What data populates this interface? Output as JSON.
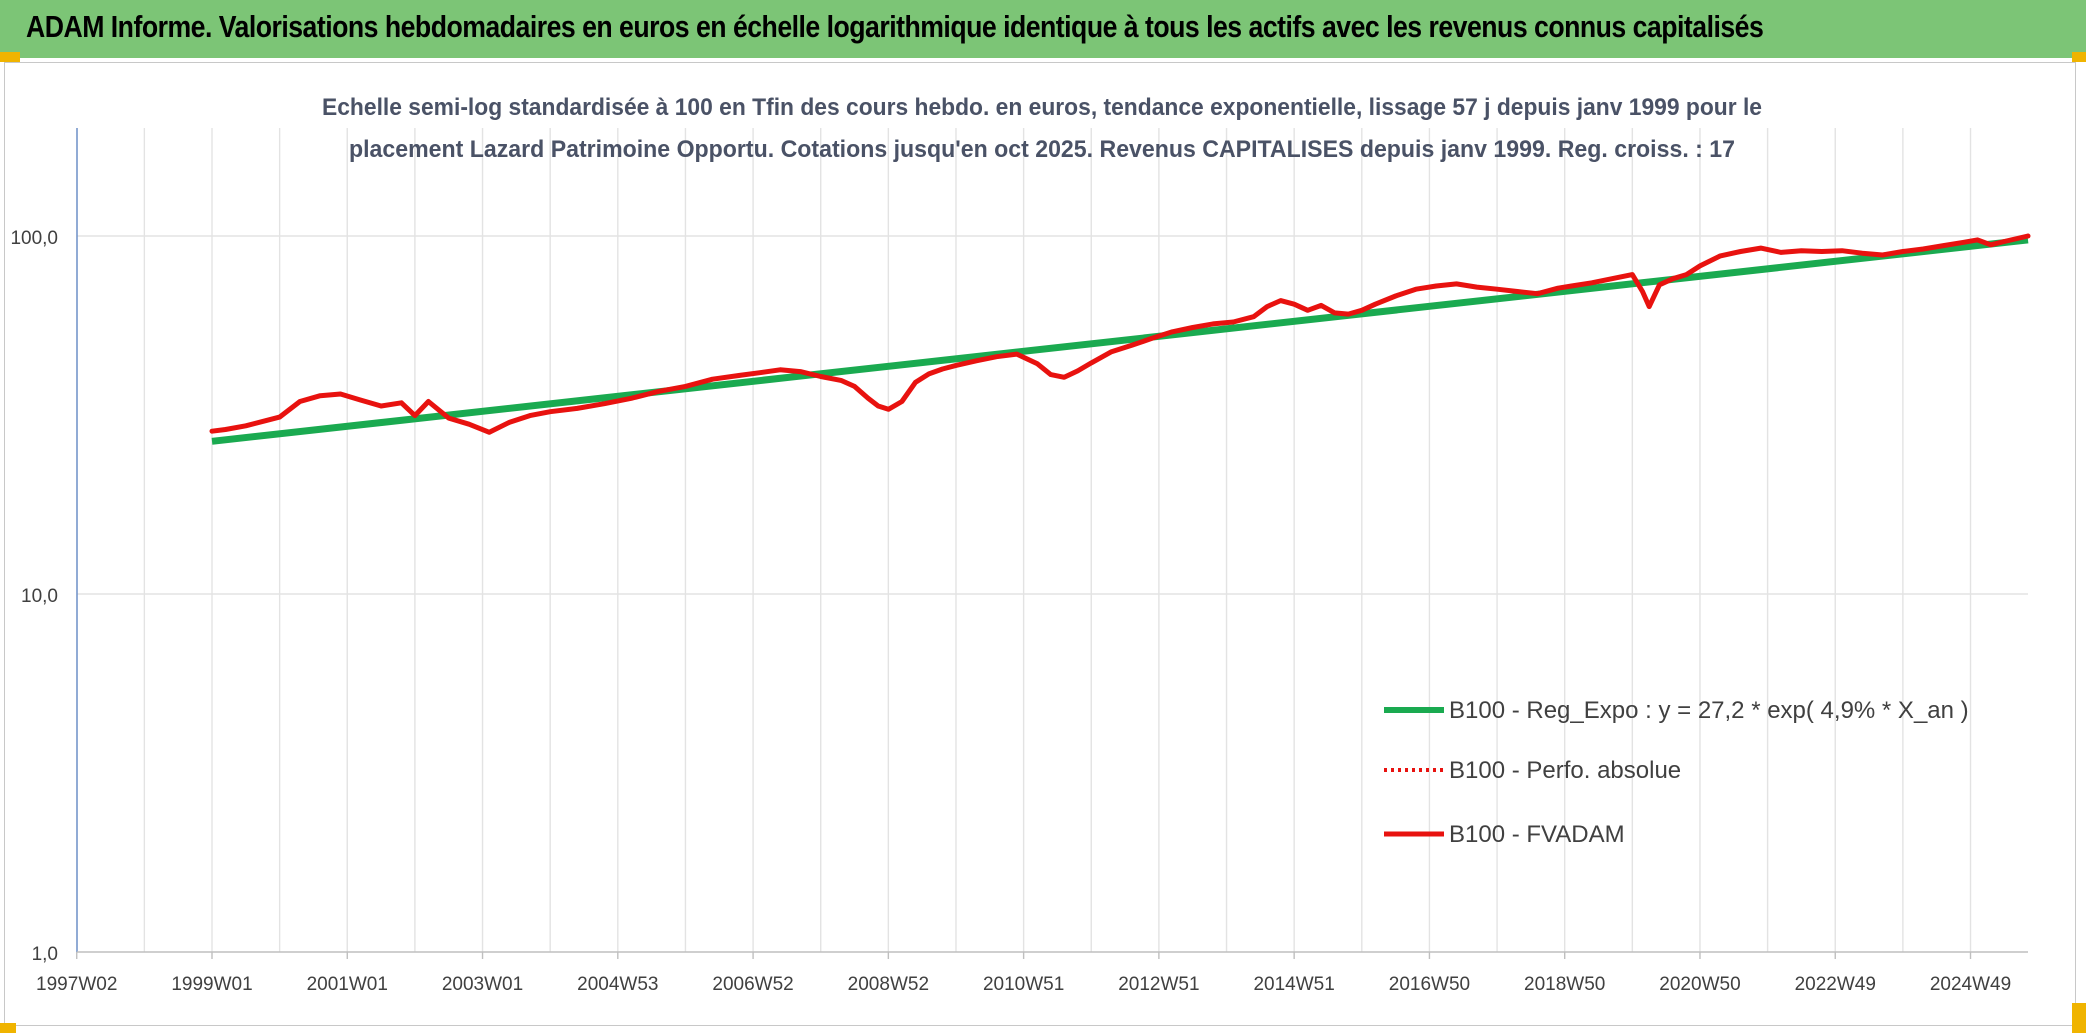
{
  "header": {
    "title": "ADAM Informe. Valorisations hebdomadaires en euros en échelle logarithmique identique à tous les actifs avec les revenus connus capitalisés"
  },
  "colors": {
    "header_bar": "#7cc576",
    "accent_corner": "#f0b400",
    "regression_line": "#1aaa50",
    "fvadam_line": "#e8120f",
    "grid": "#e3e3e3"
  },
  "chart_data": {
    "type": "line",
    "title_lines": [
      "Echelle semi-log standardisée à 100 en Tfin des cours hebdo. en euros, tendance exponentielle, lissage 57 j depuis janv 1999 pour le",
      "placement Lazard Patrimoine Opportu. Cotations jusqu'en oct 2025. Revenus CAPITALISES depuis janv 1999. Reg. croiss. : 17"
    ],
    "y_scale": "log",
    "ylim": [
      1,
      100
    ],
    "y_ticks": [
      "100,0",
      "10,0",
      "1,0"
    ],
    "x_range": [
      1997.0,
      2025.85
    ],
    "x_ticks": [
      {
        "label": "1997W02",
        "x": 1997.0
      },
      {
        "label": "1999W01",
        "x": 1999.0
      },
      {
        "label": "2001W01",
        "x": 2001.0
      },
      {
        "label": "2003W01",
        "x": 2003.0
      },
      {
        "label": "2004W53",
        "x": 2005.0
      },
      {
        "label": "2006W52",
        "x": 2007.0
      },
      {
        "label": "2008W52",
        "x": 2009.0
      },
      {
        "label": "2010W51",
        "x": 2011.0
      },
      {
        "label": "2012W51",
        "x": 2013.0
      },
      {
        "label": "2014W51",
        "x": 2015.0
      },
      {
        "label": "2016W50",
        "x": 2017.0
      },
      {
        "label": "2018W50",
        "x": 2019.0
      },
      {
        "label": "2020W50",
        "x": 2021.0
      },
      {
        "label": "2022W49",
        "x": 2023.0
      },
      {
        "label": "2024W49",
        "x": 2025.0
      }
    ],
    "grid": true,
    "legend_position": "bottom-right",
    "series": [
      {
        "name": "B100 - Reg_Expo : y = 27,2 * exp( 4,9% *  X_an )",
        "style": "solid-thick",
        "color": "#1aaa50",
        "x": [
          1999.0,
          2025.85
        ],
        "y": [
          26.7,
          97.5
        ]
      },
      {
        "name": "B100 - Perfo. absolue",
        "style": "dotted",
        "color": "#e8120f",
        "x": [],
        "y": []
      },
      {
        "name": "B100 - FVADAM",
        "style": "solid",
        "color": "#e8120f",
        "x": [
          1999.0,
          1999.2,
          1999.5,
          1999.8,
          2000.0,
          2000.3,
          2000.6,
          2000.9,
          2001.2,
          2001.5,
          2001.8,
          2002.0,
          2002.2,
          2002.5,
          2002.8,
          2003.1,
          2003.4,
          2003.7,
          2004.0,
          2004.4,
          2004.8,
          2005.2,
          2005.6,
          2006.0,
          2006.4,
          2006.8,
          2007.1,
          2007.4,
          2007.7,
          2008.0,
          2008.3,
          2008.5,
          2008.7,
          2008.85,
          2009.0,
          2009.2,
          2009.4,
          2009.6,
          2009.8,
          2010.0,
          2010.3,
          2010.6,
          2010.9,
          2011.2,
          2011.4,
          2011.6,
          2011.8,
          2012.0,
          2012.3,
          2012.6,
          2012.9,
          2013.2,
          2013.5,
          2013.8,
          2014.1,
          2014.4,
          2014.6,
          2014.8,
          2015.0,
          2015.2,
          2015.4,
          2015.6,
          2015.8,
          2016.0,
          2016.2,
          2016.5,
          2016.8,
          2017.1,
          2017.4,
          2017.7,
          2018.0,
          2018.3,
          2018.6,
          2018.9,
          2019.1,
          2019.4,
          2019.7,
          2020.0,
          2020.15,
          2020.25,
          2020.4,
          2020.6,
          2020.8,
          2021.0,
          2021.3,
          2021.6,
          2021.9,
          2022.2,
          2022.5,
          2022.8,
          2023.1,
          2023.4,
          2023.7,
          2024.0,
          2024.3,
          2024.6,
          2024.9,
          2025.1,
          2025.3,
          2025.5,
          2025.85
        ],
        "y": [
          28.5,
          28.8,
          29.5,
          30.5,
          31.2,
          34.5,
          35.8,
          36.2,
          34.8,
          33.5,
          34.2,
          31.5,
          34.5,
          31.0,
          29.8,
          28.3,
          30.2,
          31.5,
          32.3,
          33.0,
          34.0,
          35.2,
          36.8,
          38.0,
          39.8,
          40.8,
          41.5,
          42.3,
          41.8,
          40.5,
          39.5,
          38.0,
          35.2,
          33.5,
          32.8,
          34.5,
          39.0,
          41.2,
          42.5,
          43.5,
          44.8,
          46.0,
          46.8,
          44.0,
          41.0,
          40.3,
          42.0,
          44.2,
          47.5,
          49.5,
          51.8,
          54.0,
          55.5,
          56.8,
          57.5,
          59.5,
          63.5,
          66.0,
          64.5,
          62.0,
          64.0,
          61.0,
          60.5,
          62.0,
          64.5,
          68.0,
          71.0,
          72.5,
          73.5,
          72.0,
          71.0,
          70.0,
          69.0,
          71.5,
          72.5,
          74.0,
          76.0,
          78.0,
          70.0,
          63.5,
          73.0,
          76.0,
          78.0,
          82.5,
          88.0,
          90.5,
          92.5,
          90.0,
          91.0,
          90.5,
          91.0,
          89.5,
          88.5,
          90.5,
          92.0,
          94.0,
          96.0,
          97.5,
          94.5,
          96.5,
          100.0
        ]
      }
    ]
  }
}
